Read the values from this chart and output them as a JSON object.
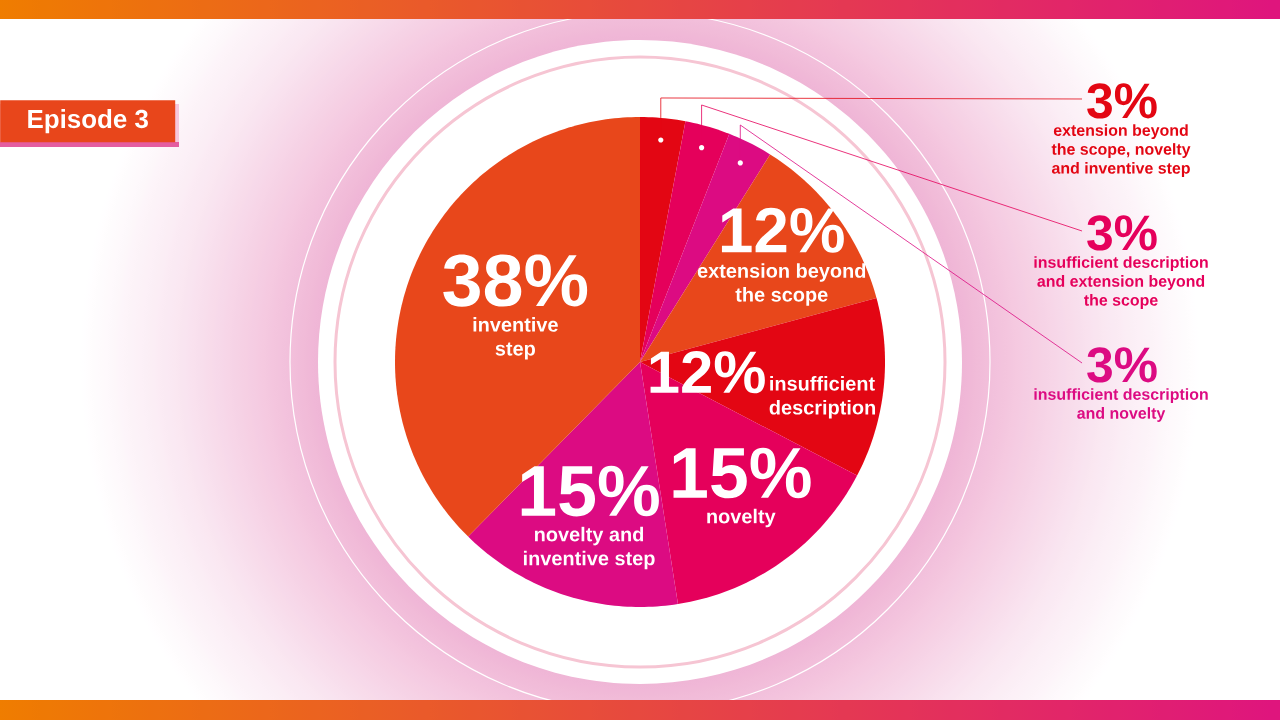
{
  "chart_data": {
    "type": "pie",
    "title": "Episode 3",
    "categories": [
      "extension beyond the scope, novelty and inventive step",
      "insufficient description and extension beyond the scope",
      "insufficient description and novelty",
      "extension beyond the scope",
      "insufficient description",
      "novelty",
      "novelty and inventive step",
      "inventive step"
    ],
    "values": [
      3,
      3,
      3,
      12,
      12,
      15,
      15,
      38
    ],
    "colors": [
      "#e30613",
      "#e5005b",
      "#dc0b82",
      "#e8471b",
      "#e30613",
      "#e5005b",
      "#dc0b82",
      "#e8471b"
    ],
    "value_labels": [
      "3%",
      "3%",
      "3%",
      "12%",
      "12%",
      "15%",
      "15%",
      "38%"
    ]
  }
}
